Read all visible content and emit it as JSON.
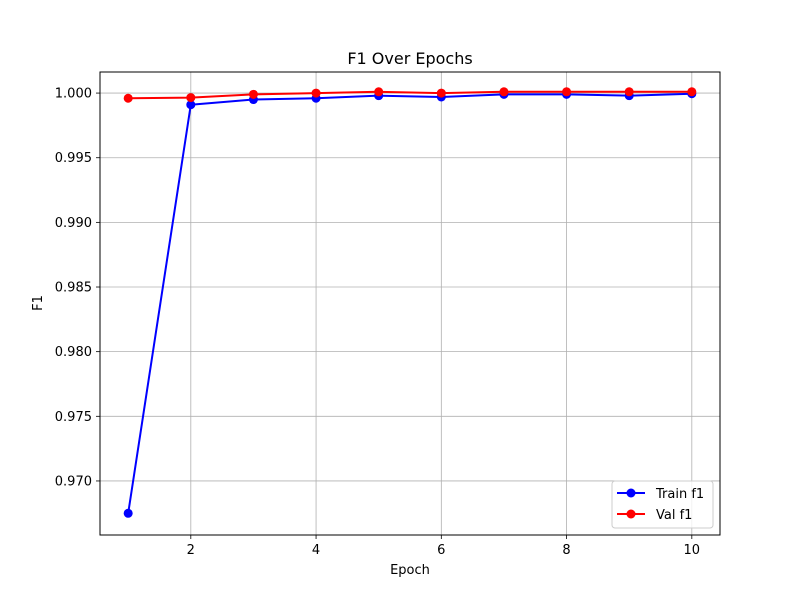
{
  "chart_data": {
    "type": "line",
    "title": "F1 Over Epochs",
    "xlabel": "Epoch",
    "ylabel": "F1",
    "x": [
      1,
      2,
      3,
      4,
      5,
      6,
      7,
      8,
      9,
      10
    ],
    "xlim": [
      0.55,
      10.45
    ],
    "ylim": [
      0.96582,
      1.00163
    ],
    "xticks": [
      2,
      4,
      6,
      8,
      10
    ],
    "yticks": [
      0.97,
      0.975,
      0.98,
      0.985,
      0.99,
      0.995,
      1.0
    ],
    "ytick_labels": [
      "0.970",
      "0.975",
      "0.980",
      "0.985",
      "0.990",
      "0.995",
      "1.000"
    ],
    "grid": true,
    "legend_position": "lower-right",
    "series": [
      {
        "name": "Train f1",
        "color": "#0000ff",
        "marker": "circle",
        "values": [
          0.9675,
          0.9991,
          0.9995,
          0.9996,
          0.9998,
          0.9997,
          0.9999,
          0.9999,
          0.9998,
          0.99995
        ]
      },
      {
        "name": "Val f1",
        "color": "#ff0000",
        "marker": "circle",
        "values": [
          0.9996,
          0.99965,
          0.9999,
          1.0,
          1.0001,
          1.0,
          1.0001,
          1.0001,
          1.0001,
          1.0001
        ]
      }
    ]
  }
}
